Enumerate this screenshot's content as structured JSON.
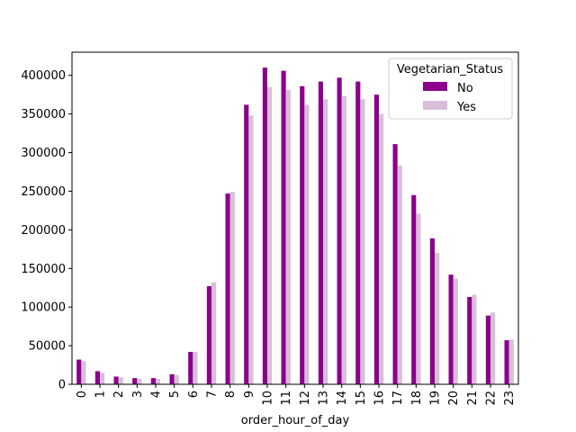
{
  "chart_data": {
    "type": "bar",
    "xlabel": "order_hour_of_day",
    "ylabel": "",
    "ylim": [
      0,
      430000
    ],
    "yticks": [
      0,
      50000,
      100000,
      150000,
      200000,
      250000,
      300000,
      350000,
      400000
    ],
    "ytick_labels": [
      "0",
      "50000",
      "100000",
      "150000",
      "200000",
      "250000",
      "300000",
      "350000",
      "400000"
    ],
    "categories": [
      "0",
      "1",
      "2",
      "3",
      "4",
      "5",
      "6",
      "7",
      "8",
      "9",
      "10",
      "11",
      "12",
      "13",
      "14",
      "15",
      "16",
      "17",
      "18",
      "19",
      "20",
      "21",
      "22",
      "23"
    ],
    "legend": {
      "title": "Vegetarian_Status",
      "placement": "top-right"
    },
    "series": [
      {
        "name": "No",
        "color": "#8b008b",
        "values": [
          32000,
          17000,
          10000,
          8000,
          8000,
          13000,
          42000,
          127000,
          247000,
          362000,
          410000,
          406000,
          386000,
          392000,
          397000,
          392000,
          375000,
          311000,
          245000,
          189000,
          142000,
          113000,
          89000,
          57000
        ]
      },
      {
        "name": "Yes",
        "color": "#d8bfd8",
        "values": [
          30000,
          15000,
          9000,
          7000,
          7000,
          12000,
          42000,
          132000,
          249000,
          348000,
          385000,
          381000,
          362000,
          369000,
          373000,
          369000,
          350000,
          283000,
          221000,
          170000,
          137000,
          116000,
          93000,
          58000
        ]
      }
    ]
  }
}
